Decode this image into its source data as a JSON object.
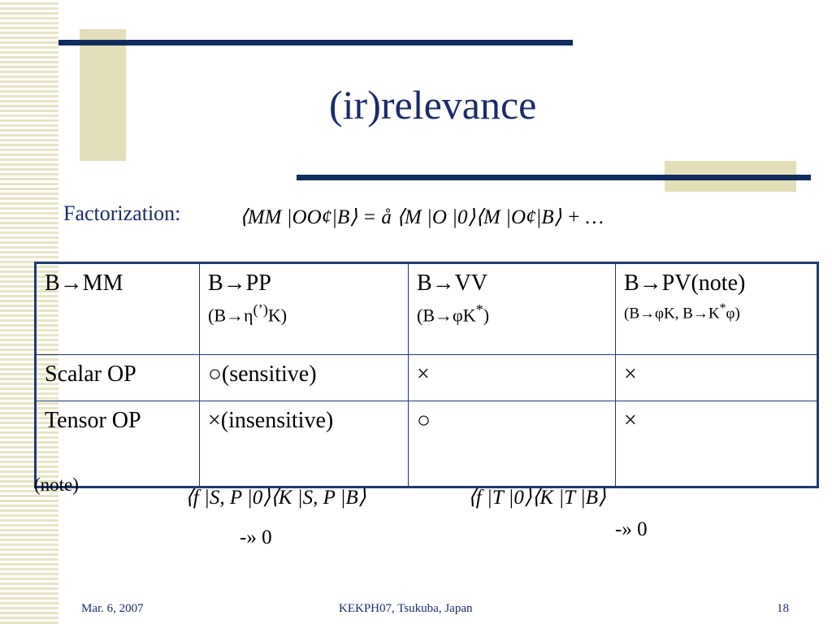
{
  "title": "(ir)relevance",
  "factorization": {
    "label": "Factorization:",
    "formula": "⟨MM |OO¢|B⟩ = å ⟨M |O |0⟩⟨M |O¢|B⟩ + …"
  },
  "table": {
    "header": [
      {
        "main": "B→MM"
      },
      {
        "main": "B→PP",
        "sub": [
          "(B→η",
          "(’)",
          "K)"
        ]
      },
      {
        "main": "B→VV",
        "sub": [
          "(B→φK",
          "*",
          ")"
        ]
      },
      {
        "main": "B→PV(note)",
        "sub": [
          "(B→φK, B→K",
          "*",
          "φ)"
        ]
      }
    ],
    "rows": [
      [
        "Scalar OP",
        "○(sensitive)",
        "×",
        "×"
      ],
      [
        "Tensor OP",
        "×(insensitive)",
        "○",
        "×"
      ]
    ]
  },
  "note": {
    "label": "(note)",
    "formula_1": "⟨f |S, P |0⟩⟨K |S, P |B⟩",
    "limit_1": "-» 0",
    "formula_2": "⟨f |T |0⟩⟨K |T |B⟩",
    "limit_2": "-» 0"
  },
  "footer": {
    "date": "Mar. 6, 2007",
    "event": "KEKPH07, Tsukuba, Japan",
    "page": "18"
  }
}
